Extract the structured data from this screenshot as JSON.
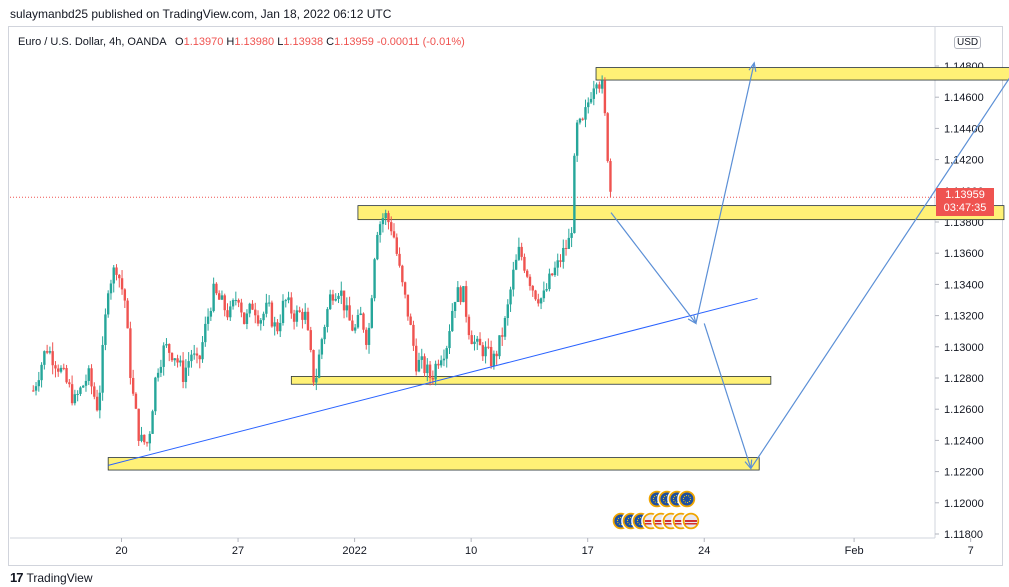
{
  "publisher": "sulaymanbd25 published on TradingView.com, Jan 18, 2022 06:12 UTC",
  "legend": {
    "symbol": "Euro / U.S. Dollar, 4h, OANDA",
    "open_label": "O",
    "open": "1.13970",
    "high_label": "H",
    "high": "1.13980",
    "low_label": "L",
    "low": "1.13938",
    "close_label": "C",
    "close": "1.13959",
    "change": "-0.00011 (-0.01%)"
  },
  "currency": "USD",
  "last_price": {
    "price": "1.13959",
    "countdown": "03:47:35"
  },
  "footer": {
    "brand": "TradingView"
  },
  "colors": {
    "up": "#26a69a",
    "down": "#ef5350",
    "zone_fill": "#fff176",
    "trend": "#2962ff",
    "arrow": "#5b8fd6"
  },
  "chart_data": {
    "type": "candlestick",
    "symbol": "EURUSD",
    "timeframe": "4h",
    "y_ticks": [
      "1.14800",
      "1.14600",
      "1.14400",
      "1.14200",
      "1.14000",
      "1.13800",
      "1.13600",
      "1.13400",
      "1.13200",
      "1.13000",
      "1.12800",
      "1.12600",
      "1.12400",
      "1.12200",
      "1.12000",
      "1.11800"
    ],
    "ylim": [
      1.1175,
      1.15
    ],
    "x_ticks": [
      "20",
      "27",
      "2022",
      "10",
      "17",
      "24",
      "Feb",
      "7"
    ],
    "x_tick_days": [
      19,
      26,
      33,
      40,
      47,
      54,
      63,
      70
    ],
    "xlim": [
      13.7,
      73.5
    ],
    "candles_day_range": [
      13.7,
      48.4
    ],
    "close_path": [
      [
        13.7,
        1.1272
      ],
      [
        14.5,
        1.13
      ],
      [
        15.3,
        1.1286
      ],
      [
        16.2,
        1.1265
      ],
      [
        17.0,
        1.1282
      ],
      [
        17.6,
        1.126
      ],
      [
        18.2,
        1.134
      ],
      [
        18.7,
        1.1352
      ],
      [
        19.2,
        1.133
      ],
      [
        19.6,
        1.1275
      ],
      [
        20.1,
        1.124
      ],
      [
        20.6,
        1.1238
      ],
      [
        21.1,
        1.1285
      ],
      [
        21.6,
        1.13
      ],
      [
        22.2,
        1.1295
      ],
      [
        22.7,
        1.1282
      ],
      [
        23.2,
        1.1296
      ],
      [
        23.6,
        1.1287
      ],
      [
        24.0,
        1.131
      ],
      [
        24.5,
        1.1335
      ],
      [
        25.0,
        1.1328
      ],
      [
        25.5,
        1.132
      ],
      [
        26.0,
        1.1335
      ],
      [
        26.4,
        1.1315
      ],
      [
        26.9,
        1.1328
      ],
      [
        27.3,
        1.1318
      ],
      [
        27.8,
        1.1325
      ],
      [
        28.3,
        1.131
      ],
      [
        28.8,
        1.133
      ],
      [
        29.4,
        1.132
      ],
      [
        30.0,
        1.1322
      ],
      [
        30.6,
        1.1275
      ],
      [
        31.1,
        1.131
      ],
      [
        31.6,
        1.1335
      ],
      [
        32.1,
        1.1338
      ],
      [
        32.6,
        1.1318
      ],
      [
        33.0,
        1.131
      ],
      [
        33.4,
        1.132
      ],
      [
        33.8,
        1.1302
      ],
      [
        34.3,
        1.1375
      ],
      [
        34.8,
        1.1385
      ],
      [
        35.3,
        1.1375
      ],
      [
        35.8,
        1.1342
      ],
      [
        36.2,
        1.1322
      ],
      [
        36.7,
        1.129
      ],
      [
        37.1,
        1.1288
      ],
      [
        37.6,
        1.128
      ],
      [
        38.1,
        1.1295
      ],
      [
        38.5,
        1.13
      ],
      [
        39.0,
        1.1333
      ],
      [
        39.5,
        1.1335
      ],
      [
        39.9,
        1.131
      ],
      [
        40.3,
        1.13
      ],
      [
        40.8,
        1.1298
      ],
      [
        41.3,
        1.129
      ],
      [
        41.7,
        1.1302
      ],
      [
        42.1,
        1.1318
      ],
      [
        42.5,
        1.1345
      ],
      [
        42.9,
        1.1362
      ],
      [
        43.3,
        1.135
      ],
      [
        43.8,
        1.1335
      ],
      [
        44.3,
        1.133
      ],
      [
        44.8,
        1.1345
      ],
      [
        45.2,
        1.1352
      ],
      [
        45.6,
        1.1362
      ],
      [
        46.0,
        1.137
      ],
      [
        46.3,
        1.144
      ],
      [
        46.7,
        1.1442
      ],
      [
        47.1,
        1.146
      ],
      [
        47.5,
        1.1475
      ],
      [
        47.9,
        1.1465
      ],
      [
        48.4,
        1.1396
      ]
    ],
    "annotations": {
      "zones": [
        {
          "x": [
            47.5,
            73.0
          ],
          "y": [
            1.1479,
            1.1471
          ]
        },
        {
          "x": [
            33.2,
            72.0
          ],
          "y": [
            1.13905,
            1.13815
          ]
        },
        {
          "x": [
            29.2,
            58.0
          ],
          "y": [
            1.1281,
            1.1276
          ]
        },
        {
          "x": [
            18.2,
            57.3
          ],
          "y": [
            1.1229,
            1.1221
          ]
        }
      ],
      "trendline": {
        "x": [
          18.2,
          57.2
        ],
        "y": [
          1.1224,
          1.1331
        ]
      },
      "arrows": [
        {
          "points": [
            [
              48.4,
              1.1386
            ],
            [
              53.5,
              1.1315
            ],
            [
              57.0,
              1.1482
            ]
          ]
        },
        {
          "points": [
            [
              54.0,
              1.1315
            ],
            [
              56.8,
              1.1222
            ],
            [
              73.0,
              1.1483
            ]
          ]
        }
      ],
      "event_icons": 2
    }
  }
}
